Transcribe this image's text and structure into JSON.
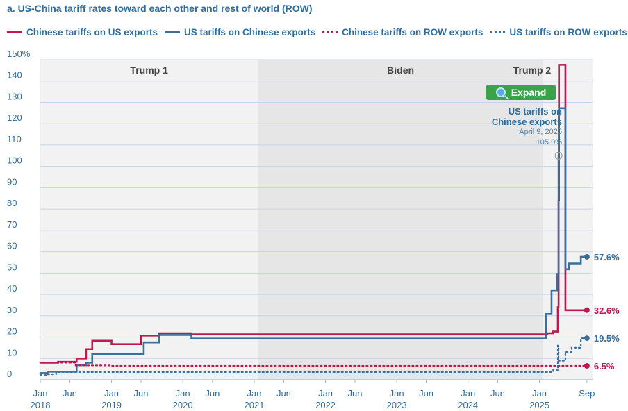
{
  "title": "a. US-China tariff rates toward each other and rest of world (ROW)",
  "legend": [
    {
      "label": "Chinese tariffs on US exports",
      "color": "#c0174f",
      "style": "solid"
    },
    {
      "label": "US tariffs on Chinese exports",
      "color": "#3a6f9a",
      "style": "solid"
    },
    {
      "label": "Chinese tariffs on ROW exports",
      "color": "#c0174f",
      "style": "dotted"
    },
    {
      "label": "US tariffs on ROW exports",
      "color": "#3a6f9a",
      "style": "dotted"
    }
  ],
  "expand_label": "Expand",
  "annotation": {
    "title_line1": "US tariffs on",
    "title_line2": "Chinese exports",
    "date": "April 9, 2025",
    "value": "105.0%"
  },
  "chart_data": {
    "type": "line",
    "title": "a. US-China tariff rates toward each other and rest of world (ROW)",
    "y_unit": "%",
    "ylim": [
      0,
      150
    ],
    "y_ticks": [
      "0",
      "10",
      "20",
      "30",
      "40",
      "50",
      "60",
      "70",
      "80",
      "90",
      "100",
      "110",
      "120",
      "130",
      "140",
      "150%"
    ],
    "x_range": [
      "2018-01-01",
      "2025-09-30"
    ],
    "x_ticks": [
      {
        "month": "Jan",
        "year": "2018",
        "date": "2018-01-01"
      },
      {
        "month": "Jun",
        "year": "",
        "date": "2018-06-01"
      },
      {
        "month": "Jan",
        "year": "2019",
        "date": "2019-01-01"
      },
      {
        "month": "Jun",
        "year": "",
        "date": "2019-06-01"
      },
      {
        "month": "Jan",
        "year": "2020",
        "date": "2020-01-01"
      },
      {
        "month": "Jun",
        "year": "",
        "date": "2020-06-01"
      },
      {
        "month": "Jan",
        "year": "2021",
        "date": "2021-01-01"
      },
      {
        "month": "Jun",
        "year": "",
        "date": "2021-06-01"
      },
      {
        "month": "Jan",
        "year": "2022",
        "date": "2022-01-01"
      },
      {
        "month": "Jun",
        "year": "",
        "date": "2022-06-01"
      },
      {
        "month": "Jan",
        "year": "2023",
        "date": "2023-01-01"
      },
      {
        "month": "Jun",
        "year": "",
        "date": "2023-06-01"
      },
      {
        "month": "Jan",
        "year": "2024",
        "date": "2024-01-01"
      },
      {
        "month": "Jun",
        "year": "",
        "date": "2024-06-01"
      },
      {
        "month": "Jan",
        "year": "2025",
        "date": "2025-01-01"
      },
      {
        "month": "Sep",
        "year": "",
        "date": "2025-09-01"
      }
    ],
    "periods": [
      {
        "label": "Trump 1",
        "start": "2018-01-01",
        "end": "2021-01-20",
        "shade": "#f2f2f2"
      },
      {
        "label": "Biden",
        "start": "2021-01-20",
        "end": "2025-01-20",
        "shade": "#e6e6e6"
      },
      {
        "label": "Trump 2",
        "start": "2025-01-20",
        "end": "2025-09-30",
        "shade": "#f2f2f2"
      }
    ],
    "grid": true,
    "series": [
      {
        "name": "Chinese tariffs on US exports",
        "color": "#c0174f",
        "style": "solid",
        "end_label": "32.6%",
        "points": [
          [
            "2018-01-01",
            8.0
          ],
          [
            "2018-04-02",
            8.4
          ],
          [
            "2018-07-06",
            10.0
          ],
          [
            "2018-08-23",
            14.4
          ],
          [
            "2018-09-24",
            18.3
          ],
          [
            "2019-01-01",
            16.7
          ],
          [
            "2019-06-01",
            20.7
          ],
          [
            "2019-09-01",
            21.8
          ],
          [
            "2020-02-14",
            21.3
          ],
          [
            "2025-02-10",
            21.8
          ],
          [
            "2025-03-10",
            22.6
          ],
          [
            "2025-04-05",
            34.0
          ],
          [
            "2025-04-09",
            84.0
          ],
          [
            "2025-04-11",
            147.6
          ],
          [
            "2025-05-14",
            32.6
          ],
          [
            "2025-09-01",
            32.6
          ]
        ]
      },
      {
        "name": "US tariffs on Chinese exports",
        "color": "#3a6f9a",
        "style": "solid",
        "end_label": "57.6%",
        "points": [
          [
            "2018-01-01",
            3.1
          ],
          [
            "2018-02-07",
            3.8
          ],
          [
            "2018-07-06",
            6.8
          ],
          [
            "2018-08-23",
            8.0
          ],
          [
            "2018-09-24",
            12.0
          ],
          [
            "2019-06-15",
            17.5
          ],
          [
            "2019-09-01",
            21.0
          ],
          [
            "2020-02-14",
            19.3
          ],
          [
            "2025-02-04",
            30.8
          ],
          [
            "2025-03-04",
            41.9
          ],
          [
            "2025-04-02",
            49.6
          ],
          [
            "2025-04-09",
            105.0
          ],
          [
            "2025-04-10",
            124.1
          ],
          [
            "2025-04-12",
            127.3
          ],
          [
            "2025-05-14",
            51.8
          ],
          [
            "2025-06-01",
            54.5
          ],
          [
            "2025-08-01",
            57.6
          ],
          [
            "2025-09-01",
            57.6
          ]
        ]
      },
      {
        "name": "Chinese tariffs on ROW exports",
        "color": "#c0174f",
        "style": "dotted",
        "end_label": "6.5%",
        "points": [
          [
            "2018-01-01",
            8.0
          ],
          [
            "2018-07-01",
            6.7
          ],
          [
            "2019-01-01",
            6.5
          ],
          [
            "2025-09-01",
            6.5
          ]
        ]
      },
      {
        "name": "US tariffs on ROW exports",
        "color": "#3a6f9a",
        "style": "dotted",
        "end_label": "19.5%",
        "points": [
          [
            "2018-01-01",
            2.2
          ],
          [
            "2018-02-07",
            2.6
          ],
          [
            "2018-03-23",
            3.6
          ],
          [
            "2025-03-12",
            4.5
          ],
          [
            "2025-04-05",
            16.0
          ],
          [
            "2025-04-09",
            8.9
          ],
          [
            "2025-05-14",
            13.0
          ],
          [
            "2025-06-15",
            15.0
          ],
          [
            "2025-08-01",
            19.5
          ],
          [
            "2025-09-01",
            19.5
          ]
        ]
      }
    ]
  }
}
